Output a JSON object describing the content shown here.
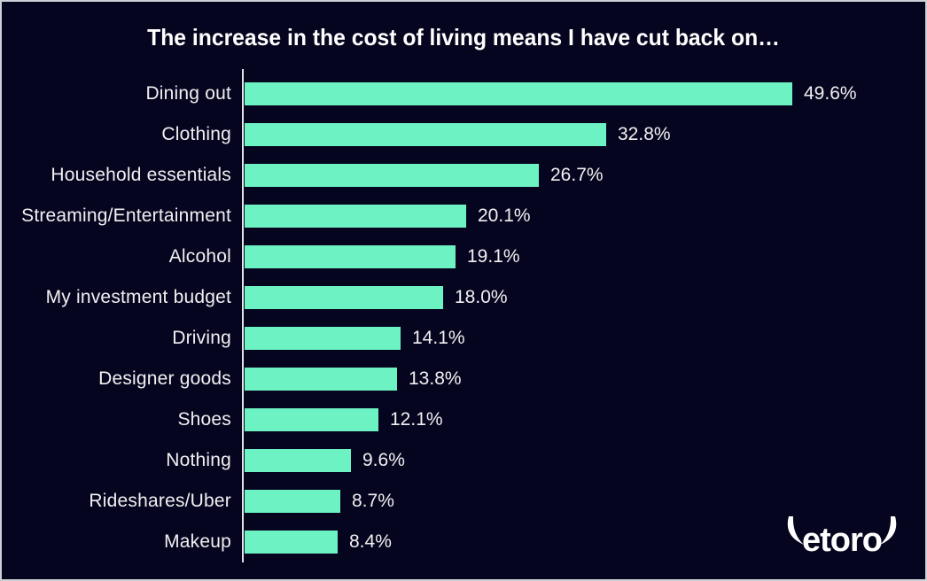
{
  "chart_data": {
    "type": "bar",
    "orientation": "horizontal",
    "title": "The increase in the cost of living means I have cut back on…",
    "categories": [
      "Dining out",
      "Clothing",
      "Household essentials",
      "Streaming/Entertainment",
      "Alcohol",
      "My investment budget",
      "Driving",
      "Designer goods",
      "Shoes",
      "Nothing",
      "Rideshares/Uber",
      "Makeup"
    ],
    "values": [
      49.6,
      32.8,
      26.7,
      20.1,
      19.1,
      18.0,
      14.1,
      13.8,
      12.1,
      9.6,
      8.7,
      8.4
    ],
    "value_labels": [
      "49.6%",
      "32.8%",
      "26.7%",
      "20.1%",
      "19.1%",
      "18.0%",
      "14.1%",
      "13.8%",
      "12.1%",
      "9.6%",
      "8.7%",
      "8.4%"
    ],
    "xlim": [
      0,
      52
    ],
    "grid": false,
    "legend": null,
    "colors": {
      "background": "#06051f",
      "bar": "#6cf2c3",
      "title_text": "#ffffff",
      "label_text": "#f0f0f2",
      "axis_line": "#e3e3e6",
      "frame_border": "#cdd0d5"
    }
  },
  "branding": {
    "logo_text": "etoro"
  }
}
